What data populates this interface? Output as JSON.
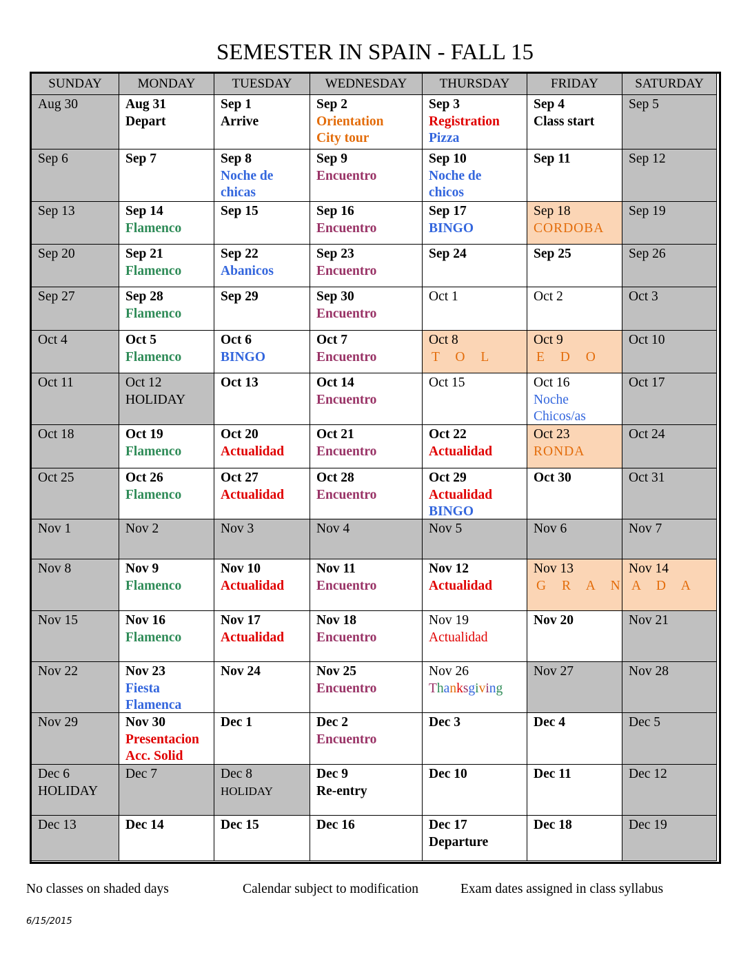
{
  "title": "SEMESTER IN SPAIN - FALL 15",
  "table": {
    "header": [
      "SUNDAY",
      "MONDAY",
      "TUESDAY",
      "WEDNESDAY",
      "THURSDAY",
      "FRIDAY",
      "SATURDAY"
    ],
    "rows": [
      [
        [
          "Aug 30"
        ],
        [
          "Aug 31",
          "Depart"
        ],
        [
          "Sep 1",
          "Arrive"
        ],
        [
          "Sep 2",
          "Orientation",
          "City tour"
        ],
        [
          "Sep 3",
          "Registration",
          "Pizza"
        ],
        [
          "Sep 4",
          "Class start"
        ],
        [
          "Sep 5"
        ]
      ],
      [
        [
          "Sep 6"
        ],
        [
          "Sep 7"
        ],
        [
          "Sep 8",
          "Noche de",
          "chicas"
        ],
        [
          "Sep 9",
          "Encuentro"
        ],
        [
          "Sep 10",
          "Noche de",
          "chicos"
        ],
        [
          "Sep 11"
        ],
        [
          "Sep 12"
        ]
      ],
      [
        [
          "Sep 13"
        ],
        [
          "Sep 14",
          "Flamenco"
        ],
        [
          "Sep 15"
        ],
        [
          "Sep 16",
          "Encuentro"
        ],
        [
          "Sep 17",
          "BINGO"
        ],
        [
          "Sep 18",
          "CORDOBA"
        ],
        [
          "Sep 19"
        ]
      ],
      [
        [
          "Sep 20"
        ],
        [
          "Sep 21",
          "Flamenco"
        ],
        [
          "Sep 22",
          "Abanicos"
        ],
        [
          "Sep 23",
          "Encuentro"
        ],
        [
          "Sep 24"
        ],
        [
          "Sep 25"
        ],
        [
          "Sep 26"
        ]
      ],
      [
        [
          "Sep 27"
        ],
        [
          "Sep 28",
          "Flamenco"
        ],
        [
          "Sep 29"
        ],
        [
          "Sep 30",
          "Encuentro"
        ],
        [
          "Oct 1"
        ],
        [
          "Oct 2"
        ],
        [
          "Oct 3"
        ]
      ],
      [
        [
          "Oct 4"
        ],
        [
          "Oct 5",
          "Flamenco"
        ],
        [
          "Oct 6",
          "BINGO"
        ],
        [
          "Oct 7",
          "Encuentro"
        ],
        [
          "Oct 8",
          "T O L"
        ],
        [
          "Oct 9",
          "E D O"
        ],
        [
          "Oct 10"
        ]
      ],
      [
        [
          "Oct 11"
        ],
        [
          "Oct 12",
          "HOLIDAY"
        ],
        [
          "Oct 13"
        ],
        [
          "Oct 14",
          "Encuentro"
        ],
        [
          "Oct 15"
        ],
        [
          "Oct 16",
          "Noche",
          "Chicos/as"
        ],
        [
          "Oct 17"
        ]
      ],
      [
        [
          "Oct 18"
        ],
        [
          "Oct 19",
          "Flamenco"
        ],
        [
          "Oct 20",
          "Actualidad"
        ],
        [
          "Oct 21",
          "Encuentro"
        ],
        [
          "Oct 22",
          "Actualidad"
        ],
        [
          "Oct 23",
          "RONDA"
        ],
        [
          "Oct 24"
        ]
      ],
      [
        [
          "Oct 25"
        ],
        [
          "Oct 26",
          "Flamenco"
        ],
        [
          "Oct 27",
          "Actualidad"
        ],
        [
          "Oct 28",
          "Encuentro"
        ],
        [
          "Oct 29",
          "Actualidad",
          "BINGO"
        ],
        [
          "Oct 30"
        ],
        [
          "Oct 31"
        ]
      ],
      [
        [
          "Nov 1"
        ],
        [
          "Nov 2"
        ],
        [
          "Nov 3"
        ],
        [
          "Nov 4"
        ],
        [
          "Nov 5"
        ],
        [
          "Nov 6"
        ],
        [
          "Nov 7"
        ]
      ],
      [
        [
          "Nov 8"
        ],
        [
          "Nov 9",
          "Flamenco"
        ],
        [
          "Nov 10",
          "Actualidad"
        ],
        [
          "Nov 11",
          "Encuentro"
        ],
        [
          "Nov 12",
          "Actualidad"
        ],
        [
          "Nov 13",
          "G R A N"
        ],
        [
          "Nov 14",
          "A D A"
        ]
      ],
      [
        [
          "Nov 15"
        ],
        [
          "Nov 16",
          "Flamenco"
        ],
        [
          "Nov 17",
          "Actualidad"
        ],
        [
          "Nov 18",
          "Encuentro"
        ],
        [
          "Nov 19",
          "Actualidad"
        ],
        [
          "Nov 20"
        ],
        [
          "Nov 21"
        ]
      ],
      [
        [
          "Nov 22"
        ],
        [
          "Nov 23",
          "Fiesta",
          "Flamenca"
        ],
        [
          "Nov 24"
        ],
        [
          "Nov 25",
          "Encuentro"
        ],
        [
          "Nov 26",
          "Thanksgiving"
        ],
        [
          "Nov 27"
        ],
        [
          "Nov 28"
        ]
      ],
      [
        [
          "Nov 29"
        ],
        [
          "Nov 30",
          "Presentacion",
          "Acc. Solid"
        ],
        [
          "Dec 1"
        ],
        [
          "Dec 2",
          "Encuentro"
        ],
        [
          "Dec 3"
        ],
        [
          "Dec 4"
        ],
        [
          "Dec 5"
        ]
      ],
      [
        [
          "Dec 6",
          "HOLIDAY"
        ],
        [
          "Dec 7"
        ],
        [
          "Dec 8",
          "HOLIDAY"
        ],
        [
          "Dec 9",
          "Re-entry"
        ],
        [
          "Dec 10"
        ],
        [
          "Dec 11"
        ],
        [
          "Dec 12"
        ]
      ],
      [
        [
          "Dec 13"
        ],
        [
          "Dec 14"
        ],
        [
          "Dec 15"
        ],
        [
          "Dec 16"
        ],
        [
          "Dec 17",
          "Departure"
        ],
        [
          "Dec 18"
        ],
        [
          "Dec 19"
        ]
      ]
    ]
  },
  "footer": {
    "notes": [
      "No classes on shaded days",
      "Calendar subject to modification",
      "Exam dates assigned in class syllabus"
    ],
    "date": "6/15/2015"
  }
}
